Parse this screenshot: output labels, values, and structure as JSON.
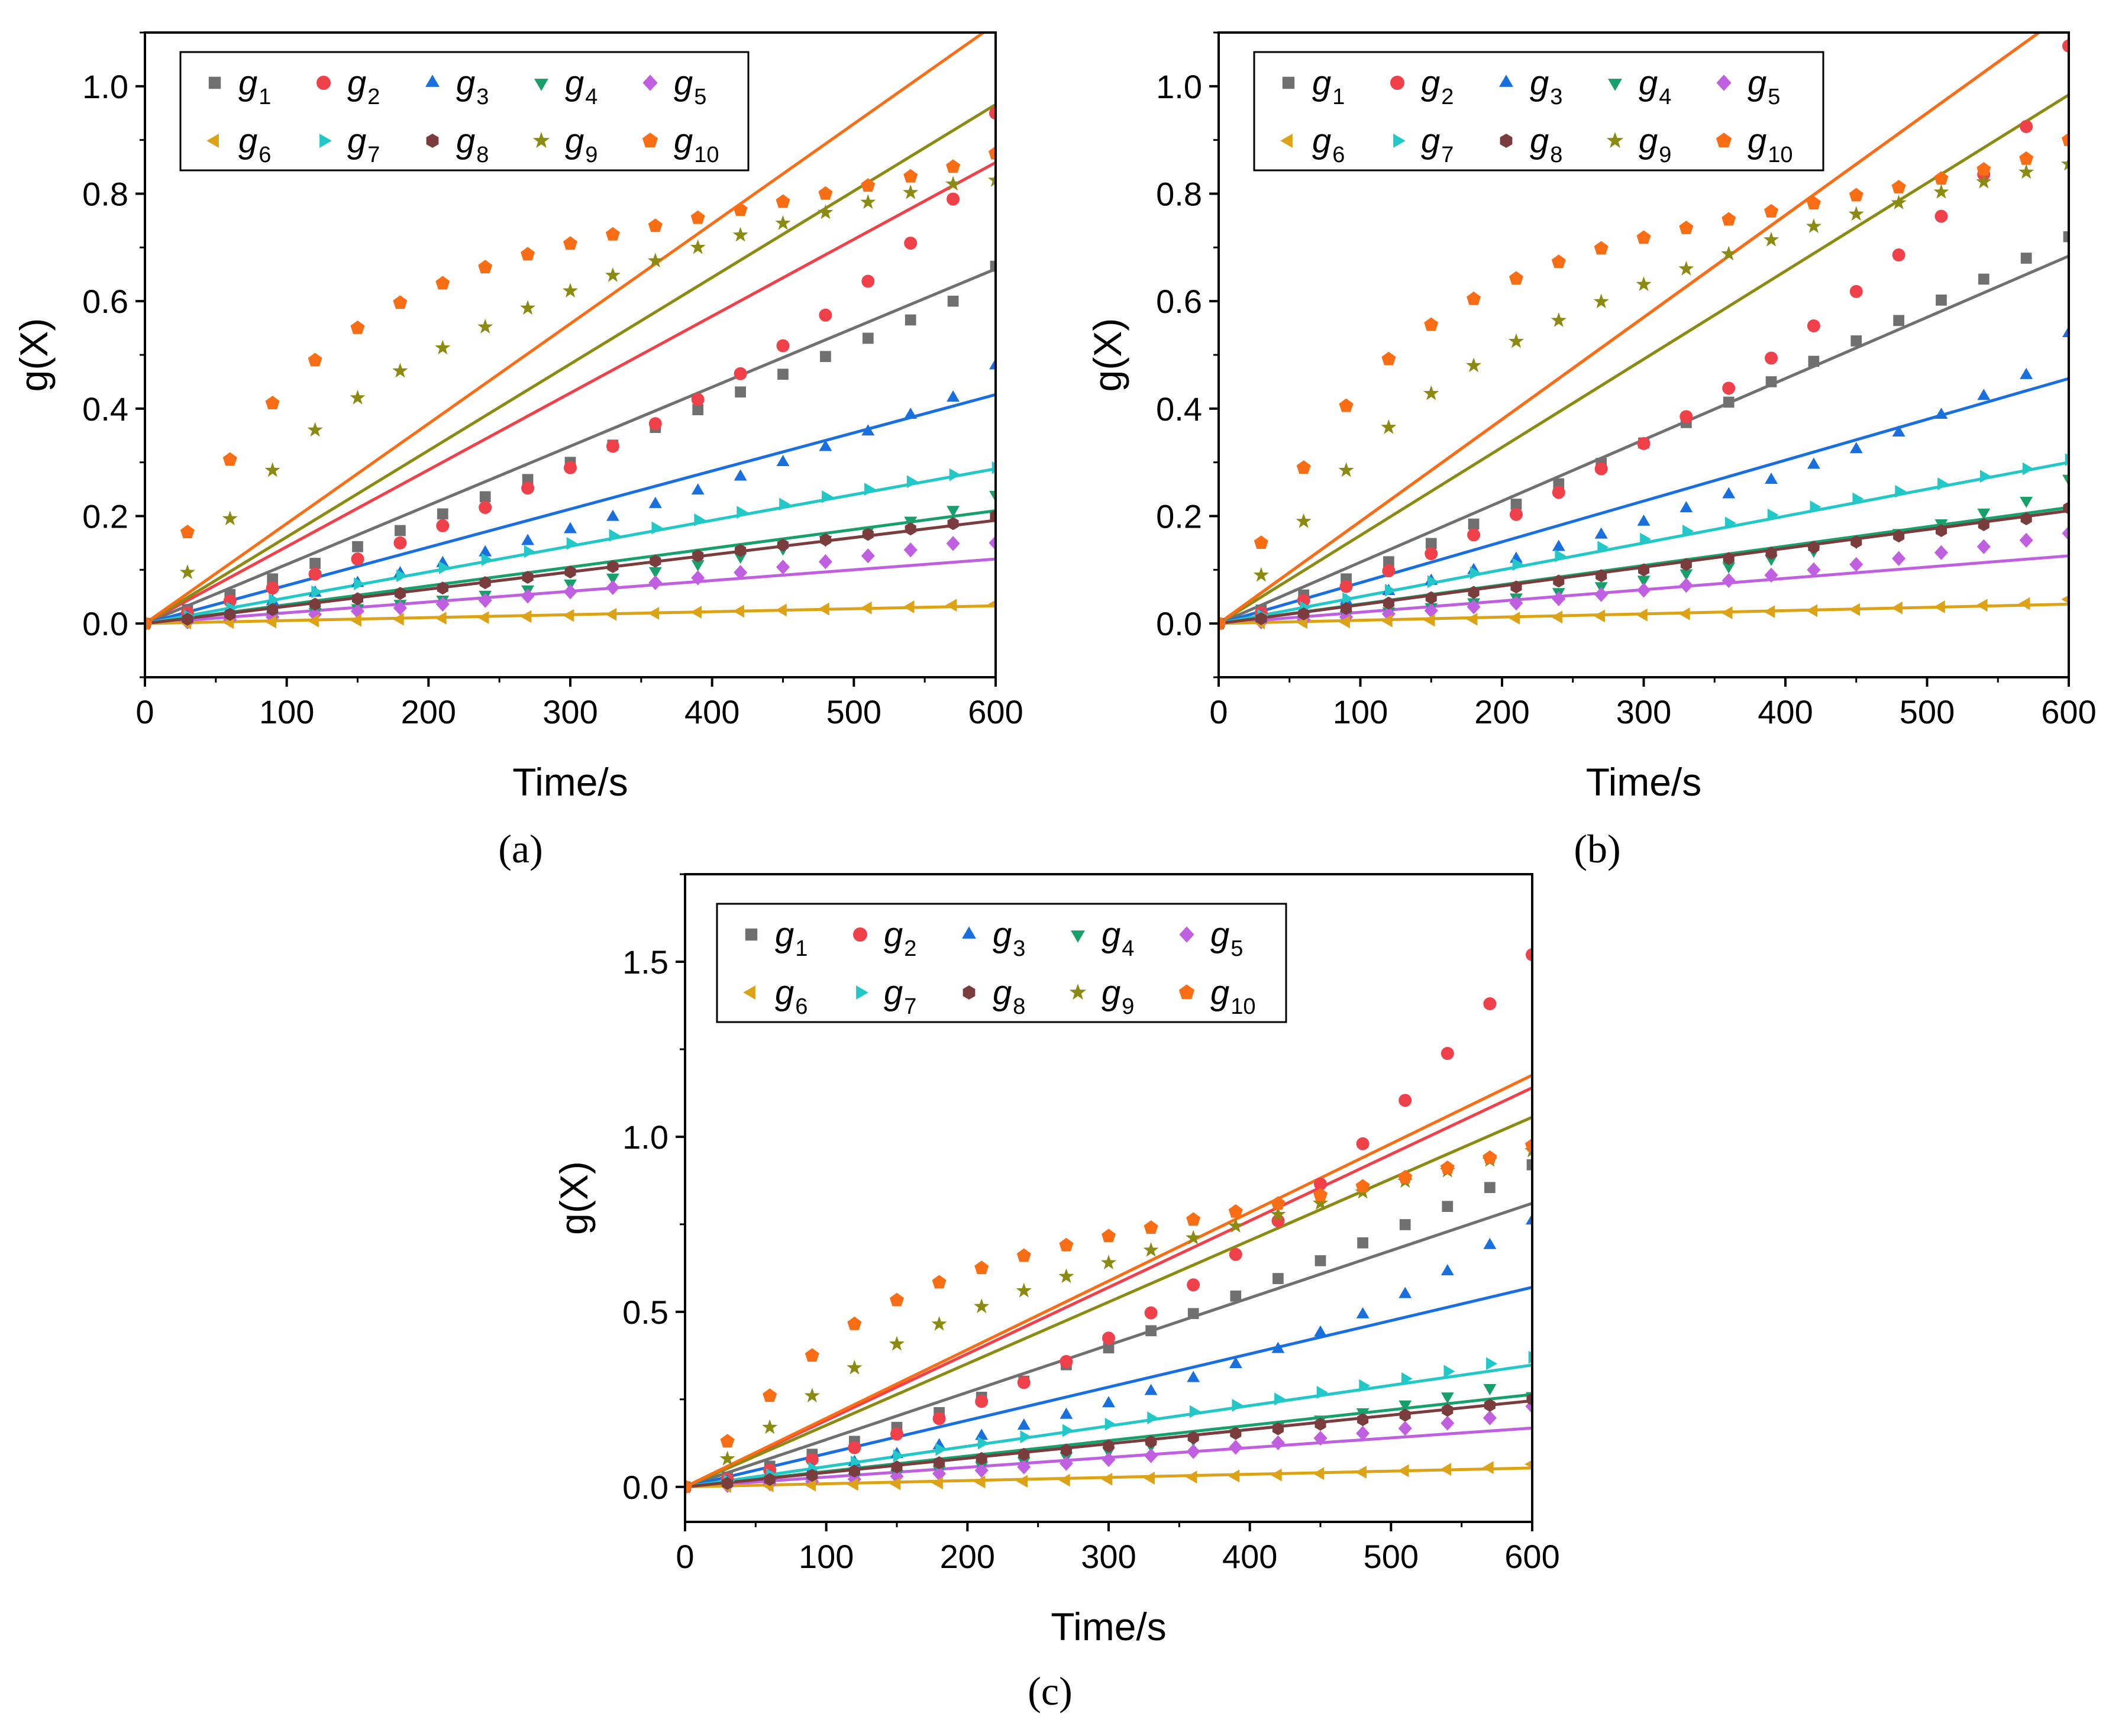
{
  "figure": {
    "panel_labels": [
      "(a)",
      "(b)",
      "(c)"
    ]
  },
  "legend": {
    "entries": [
      {
        "key": "g1",
        "base": "g",
        "sub": "1",
        "color": "#707070",
        "marker": "square"
      },
      {
        "key": "g2",
        "base": "g",
        "sub": "2",
        "color": "#f0404a",
        "marker": "circle"
      },
      {
        "key": "g3",
        "base": "g",
        "sub": "3",
        "color": "#1a6fdf",
        "marker": "triangle-up"
      },
      {
        "key": "g4",
        "base": "g",
        "sub": "4",
        "color": "#18a06c",
        "marker": "triangle-down"
      },
      {
        "key": "g5",
        "base": "g",
        "sub": "5",
        "color": "#c060e0",
        "marker": "diamond"
      },
      {
        "key": "g6",
        "base": "g",
        "sub": "6",
        "color": "#dca316",
        "marker": "triangle-left"
      },
      {
        "key": "g7",
        "base": "g",
        "sub": "7",
        "color": "#22c8c8",
        "marker": "triangle-right"
      },
      {
        "key": "g8",
        "base": "g",
        "sub": "8",
        "color": "#7a3c3c",
        "marker": "hexagon"
      },
      {
        "key": "g9",
        "base": "g",
        "sub": "9",
        "color": "#8b8b12",
        "marker": "star"
      },
      {
        "key": "g10",
        "base": "g",
        "sub": "10",
        "color": "#f96d15",
        "marker": "pentagon"
      }
    ]
  },
  "chart_data": [
    {
      "panel": "(a)",
      "type": "scatter",
      "title": "",
      "xlabel": "Time/s",
      "ylabel": "g(X)",
      "xlim": [
        0,
        600
      ],
      "ylim": [
        -0.1,
        1.1
      ],
      "xticks": [
        0,
        100,
        200,
        300,
        400,
        500,
        600
      ],
      "yticks": [
        0.0,
        0.2,
        0.4,
        0.6,
        0.8,
        1.0
      ],
      "xtick_labels": [
        "0",
        "100",
        "200",
        "300",
        "400",
        "500",
        "600"
      ],
      "ytick_labels": [
        "0.0",
        "0.2",
        "0.4",
        "0.6",
        "0.8",
        "1.0"
      ],
      "legend_location": "top-left",
      "x": [
        0,
        30,
        60,
        90,
        120,
        150,
        180,
        210,
        240,
        270,
        300,
        330,
        360,
        390,
        420,
        450,
        480,
        510,
        540,
        570,
        600
      ],
      "series": [
        {
          "name": "g1",
          "values": [
            0,
            0.026,
            0.054,
            0.083,
            0.112,
            0.143,
            0.173,
            0.204,
            0.236,
            0.268,
            0.3,
            0.332,
            0.365,
            0.398,
            0.431,
            0.464,
            0.497,
            0.531,
            0.565,
            0.6,
            0.665
          ],
          "fit_slope": 0.0011
        },
        {
          "name": "g2",
          "values": [
            0,
            0.02,
            0.042,
            0.066,
            0.092,
            0.12,
            0.15,
            0.182,
            0.216,
            0.252,
            0.29,
            0.33,
            0.372,
            0.417,
            0.465,
            0.517,
            0.574,
            0.637,
            0.708,
            0.79,
            0.95
          ],
          "fit_slope": 0.00143
        },
        {
          "name": "g3",
          "values": [
            0,
            0.012,
            0.026,
            0.041,
            0.057,
            0.075,
            0.093,
            0.112,
            0.132,
            0.153,
            0.175,
            0.198,
            0.222,
            0.247,
            0.273,
            0.3,
            0.328,
            0.357,
            0.388,
            0.42,
            0.48
          ],
          "fit_slope": 0.00071
        },
        {
          "name": "g4",
          "values": [
            0,
            0.004,
            0.009,
            0.015,
            0.022,
            0.029,
            0.037,
            0.045,
            0.054,
            0.064,
            0.075,
            0.086,
            0.098,
            0.111,
            0.125,
            0.14,
            0.156,
            0.173,
            0.192,
            0.212,
            0.24
          ],
          "fit_slope": 0.00035
        },
        {
          "name": "g5",
          "values": [
            0,
            0.003,
            0.007,
            0.012,
            0.017,
            0.023,
            0.029,
            0.036,
            0.043,
            0.051,
            0.059,
            0.067,
            0.076,
            0.085,
            0.095,
            0.105,
            0.115,
            0.126,
            0.137,
            0.149,
            0.15
          ],
          "fit_slope": 0.0002
        },
        {
          "name": "g6",
          "values": [
            0,
            0.001,
            0.002,
            0.003,
            0.005,
            0.006,
            0.008,
            0.01,
            0.011,
            0.013,
            0.015,
            0.017,
            0.019,
            0.021,
            0.023,
            0.025,
            0.027,
            0.029,
            0.031,
            0.034,
            0.036
          ],
          "fit_slope": 5.5e-05
        },
        {
          "name": "g7",
          "values": [
            0,
            0.014,
            0.029,
            0.044,
            0.059,
            0.074,
            0.089,
            0.104,
            0.119,
            0.134,
            0.149,
            0.164,
            0.178,
            0.193,
            0.207,
            0.222,
            0.236,
            0.25,
            0.264,
            0.277,
            0.29
          ],
          "fit_slope": 0.00048
        },
        {
          "name": "g8",
          "values": [
            0,
            0.008,
            0.017,
            0.026,
            0.036,
            0.046,
            0.056,
            0.066,
            0.076,
            0.086,
            0.096,
            0.106,
            0.116,
            0.126,
            0.136,
            0.146,
            0.156,
            0.166,
            0.176,
            0.186,
            0.2
          ],
          "fit_slope": 0.00032
        },
        {
          "name": "g9",
          "values": [
            0,
            0.095,
            0.195,
            0.285,
            0.36,
            0.42,
            0.47,
            0.513,
            0.552,
            0.587,
            0.619,
            0.648,
            0.675,
            0.7,
            0.723,
            0.745,
            0.765,
            0.784,
            0.802,
            0.818,
            0.825
          ],
          "fit_slope": 0.00161
        },
        {
          "name": "g10",
          "values": [
            0,
            0.17,
            0.305,
            0.41,
            0.49,
            0.55,
            0.597,
            0.633,
            0.663,
            0.687,
            0.707,
            0.724,
            0.74,
            0.755,
            0.77,
            0.785,
            0.8,
            0.815,
            0.832,
            0.85,
            0.875
          ],
          "fit_slope": 0.00186
        }
      ]
    },
    {
      "panel": "(b)",
      "type": "scatter",
      "title": "",
      "xlabel": "Time/s",
      "ylabel": "g(X)",
      "xlim": [
        0,
        600
      ],
      "ylim": [
        -0.1,
        1.1
      ],
      "xticks": [
        0,
        100,
        200,
        300,
        400,
        500,
        600
      ],
      "yticks": [
        0.0,
        0.2,
        0.4,
        0.6,
        0.8,
        1.0
      ],
      "xtick_labels": [
        "0",
        "100",
        "200",
        "300",
        "400",
        "500",
        "600"
      ],
      "ytick_labels": [
        "0.0",
        "0.2",
        "0.4",
        "0.6",
        "0.8",
        "1.0"
      ],
      "legend_location": "top-left",
      "x": [
        0,
        30,
        60,
        90,
        120,
        150,
        180,
        210,
        240,
        270,
        300,
        330,
        360,
        390,
        420,
        450,
        480,
        510,
        540,
        570,
        600
      ],
      "series": [
        {
          "name": "g1",
          "values": [
            0,
            0.025,
            0.053,
            0.083,
            0.115,
            0.149,
            0.185,
            0.222,
            0.26,
            0.298,
            0.336,
            0.374,
            0.412,
            0.45,
            0.488,
            0.526,
            0.564,
            0.602,
            0.641,
            0.68,
            0.72
          ],
          "fit_slope": 0.00114
        },
        {
          "name": "g2",
          "values": [
            0,
            0.02,
            0.043,
            0.069,
            0.098,
            0.13,
            0.165,
            0.203,
            0.244,
            0.288,
            0.335,
            0.385,
            0.438,
            0.494,
            0.554,
            0.618,
            0.686,
            0.758,
            0.836,
            0.925,
            1.075
          ],
          "fit_slope": 0.0019
        },
        {
          "name": "g3",
          "values": [
            0,
            0.012,
            0.026,
            0.042,
            0.06,
            0.079,
            0.099,
            0.12,
            0.142,
            0.165,
            0.189,
            0.214,
            0.24,
            0.267,
            0.295,
            0.324,
            0.355,
            0.388,
            0.423,
            0.462,
            0.54
          ],
          "fit_slope": 0.00076
        },
        {
          "name": "g4",
          "values": [
            0,
            0.004,
            0.009,
            0.016,
            0.023,
            0.031,
            0.04,
            0.049,
            0.059,
            0.07,
            0.082,
            0.094,
            0.107,
            0.121,
            0.136,
            0.152,
            0.169,
            0.187,
            0.207,
            0.229,
            0.27
          ],
          "fit_slope": 0.00036
        },
        {
          "name": "g5",
          "values": [
            0,
            0.003,
            0.007,
            0.012,
            0.018,
            0.024,
            0.031,
            0.038,
            0.046,
            0.054,
            0.062,
            0.071,
            0.08,
            0.09,
            0.1,
            0.11,
            0.121,
            0.132,
            0.143,
            0.155,
            0.168
          ],
          "fit_slope": 0.00021
        },
        {
          "name": "g6",
          "values": [
            0,
            0.001,
            0.002,
            0.003,
            0.005,
            0.006,
            0.008,
            0.01,
            0.012,
            0.014,
            0.016,
            0.018,
            0.02,
            0.022,
            0.024,
            0.026,
            0.029,
            0.031,
            0.034,
            0.037,
            0.045
          ],
          "fit_slope": 6e-05
        },
        {
          "name": "g7",
          "values": [
            0,
            0.015,
            0.03,
            0.046,
            0.062,
            0.078,
            0.094,
            0.11,
            0.126,
            0.142,
            0.157,
            0.172,
            0.187,
            0.202,
            0.217,
            0.232,
            0.246,
            0.26,
            0.274,
            0.288,
            0.305
          ],
          "fit_slope": 0.0005
        },
        {
          "name": "g8",
          "values": [
            0,
            0.009,
            0.018,
            0.028,
            0.038,
            0.048,
            0.058,
            0.068,
            0.079,
            0.089,
            0.1,
            0.11,
            0.121,
            0.131,
            0.142,
            0.152,
            0.163,
            0.173,
            0.184,
            0.195,
            0.215
          ],
          "fit_slope": 0.00035
        },
        {
          "name": "g9",
          "values": [
            0,
            0.09,
            0.19,
            0.285,
            0.365,
            0.428,
            0.48,
            0.525,
            0.564,
            0.599,
            0.631,
            0.66,
            0.688,
            0.714,
            0.739,
            0.762,
            0.783,
            0.803,
            0.822,
            0.84,
            0.855
          ],
          "fit_slope": 0.00164
        },
        {
          "name": "g10",
          "values": [
            0,
            0.15,
            0.29,
            0.405,
            0.492,
            0.556,
            0.604,
            0.642,
            0.673,
            0.698,
            0.718,
            0.736,
            0.752,
            0.767,
            0.782,
            0.797,
            0.812,
            0.828,
            0.845,
            0.865,
            0.9
          ],
          "fit_slope": 0.0019
        }
      ]
    },
    {
      "panel": "(c)",
      "type": "scatter",
      "title": "",
      "xlabel": "Time/s",
      "ylabel": "g(X)",
      "xlim": [
        0,
        600
      ],
      "ylim": [
        -0.1,
        1.75
      ],
      "xticks": [
        0,
        100,
        200,
        300,
        400,
        500,
        600
      ],
      "yticks": [
        0.0,
        0.5,
        1.0,
        1.5
      ],
      "xtick_labels": [
        "0",
        "100",
        "200",
        "300",
        "400",
        "500",
        "600"
      ],
      "ytick_labels": [
        "0.0",
        "0.5",
        "1.0",
        "1.5"
      ],
      "legend_location": "top-left",
      "x": [
        0,
        30,
        60,
        90,
        120,
        150,
        180,
        210,
        240,
        270,
        300,
        330,
        360,
        390,
        420,
        450,
        480,
        510,
        540,
        570,
        600
      ],
      "series": [
        {
          "name": "g1",
          "values": [
            0,
            0.028,
            0.059,
            0.093,
            0.13,
            0.17,
            0.212,
            0.256,
            0.302,
            0.349,
            0.397,
            0.446,
            0.495,
            0.545,
            0.595,
            0.646,
            0.697,
            0.749,
            0.801,
            0.855,
            0.92
          ],
          "fit_slope": 0.00135
        },
        {
          "name": "g2",
          "values": [
            0,
            0.022,
            0.048,
            0.078,
            0.112,
            0.151,
            0.195,
            0.244,
            0.298,
            0.358,
            0.425,
            0.497,
            0.577,
            0.664,
            0.76,
            0.865,
            0.98,
            1.104,
            1.238,
            1.38,
            1.52
          ],
          "fit_slope": 0.0019
        },
        {
          "name": "g3",
          "values": [
            0,
            0.014,
            0.03,
            0.049,
            0.07,
            0.093,
            0.118,
            0.145,
            0.174,
            0.205,
            0.238,
            0.273,
            0.31,
            0.35,
            0.393,
            0.44,
            0.492,
            0.55,
            0.615,
            0.69,
            0.76
          ],
          "fit_slope": 0.00095
        },
        {
          "name": "g4",
          "values": [
            0,
            0.005,
            0.011,
            0.019,
            0.028,
            0.038,
            0.049,
            0.061,
            0.074,
            0.088,
            0.103,
            0.119,
            0.136,
            0.154,
            0.173,
            0.193,
            0.214,
            0.236,
            0.259,
            0.283,
            0.26
          ],
          "fit_slope": 0.00044
        },
        {
          "name": "g5",
          "values": [
            0,
            0.004,
            0.009,
            0.015,
            0.022,
            0.03,
            0.038,
            0.047,
            0.057,
            0.067,
            0.078,
            0.089,
            0.101,
            0.113,
            0.126,
            0.139,
            0.153,
            0.167,
            0.182,
            0.197,
            0.23
          ],
          "fit_slope": 0.00028
        },
        {
          "name": "g6",
          "values": [
            0,
            0.001,
            0.003,
            0.005,
            0.007,
            0.009,
            0.011,
            0.014,
            0.016,
            0.019,
            0.022,
            0.025,
            0.028,
            0.031,
            0.034,
            0.038,
            0.042,
            0.046,
            0.05,
            0.055,
            0.065
          ],
          "fit_slope": 9e-05
        },
        {
          "name": "g7",
          "values": [
            0,
            0.017,
            0.035,
            0.053,
            0.071,
            0.089,
            0.107,
            0.125,
            0.143,
            0.161,
            0.179,
            0.197,
            0.215,
            0.233,
            0.251,
            0.27,
            0.289,
            0.309,
            0.33,
            0.352,
            0.37
          ],
          "fit_slope": 0.00058
        },
        {
          "name": "g8",
          "values": [
            0,
            0.01,
            0.021,
            0.033,
            0.045,
            0.057,
            0.069,
            0.081,
            0.093,
            0.105,
            0.117,
            0.129,
            0.141,
            0.153,
            0.166,
            0.179,
            0.192,
            0.205,
            0.219,
            0.233,
            0.25
          ],
          "fit_slope": 0.00041
        },
        {
          "name": "g9",
          "values": [
            0,
            0.08,
            0.17,
            0.26,
            0.34,
            0.408,
            0.465,
            0.515,
            0.56,
            0.601,
            0.64,
            0.676,
            0.711,
            0.745,
            0.778,
            0.81,
            0.842,
            0.873,
            0.903,
            0.933,
            0.96
          ],
          "fit_slope": 0.00176
        },
        {
          "name": "g10",
          "values": [
            0,
            0.13,
            0.26,
            0.375,
            0.465,
            0.533,
            0.584,
            0.625,
            0.66,
            0.69,
            0.716,
            0.74,
            0.763,
            0.786,
            0.809,
            0.833,
            0.858,
            0.884,
            0.911,
            0.94,
            0.975
          ],
          "fit_slope": 0.00196
        }
      ]
    }
  ]
}
